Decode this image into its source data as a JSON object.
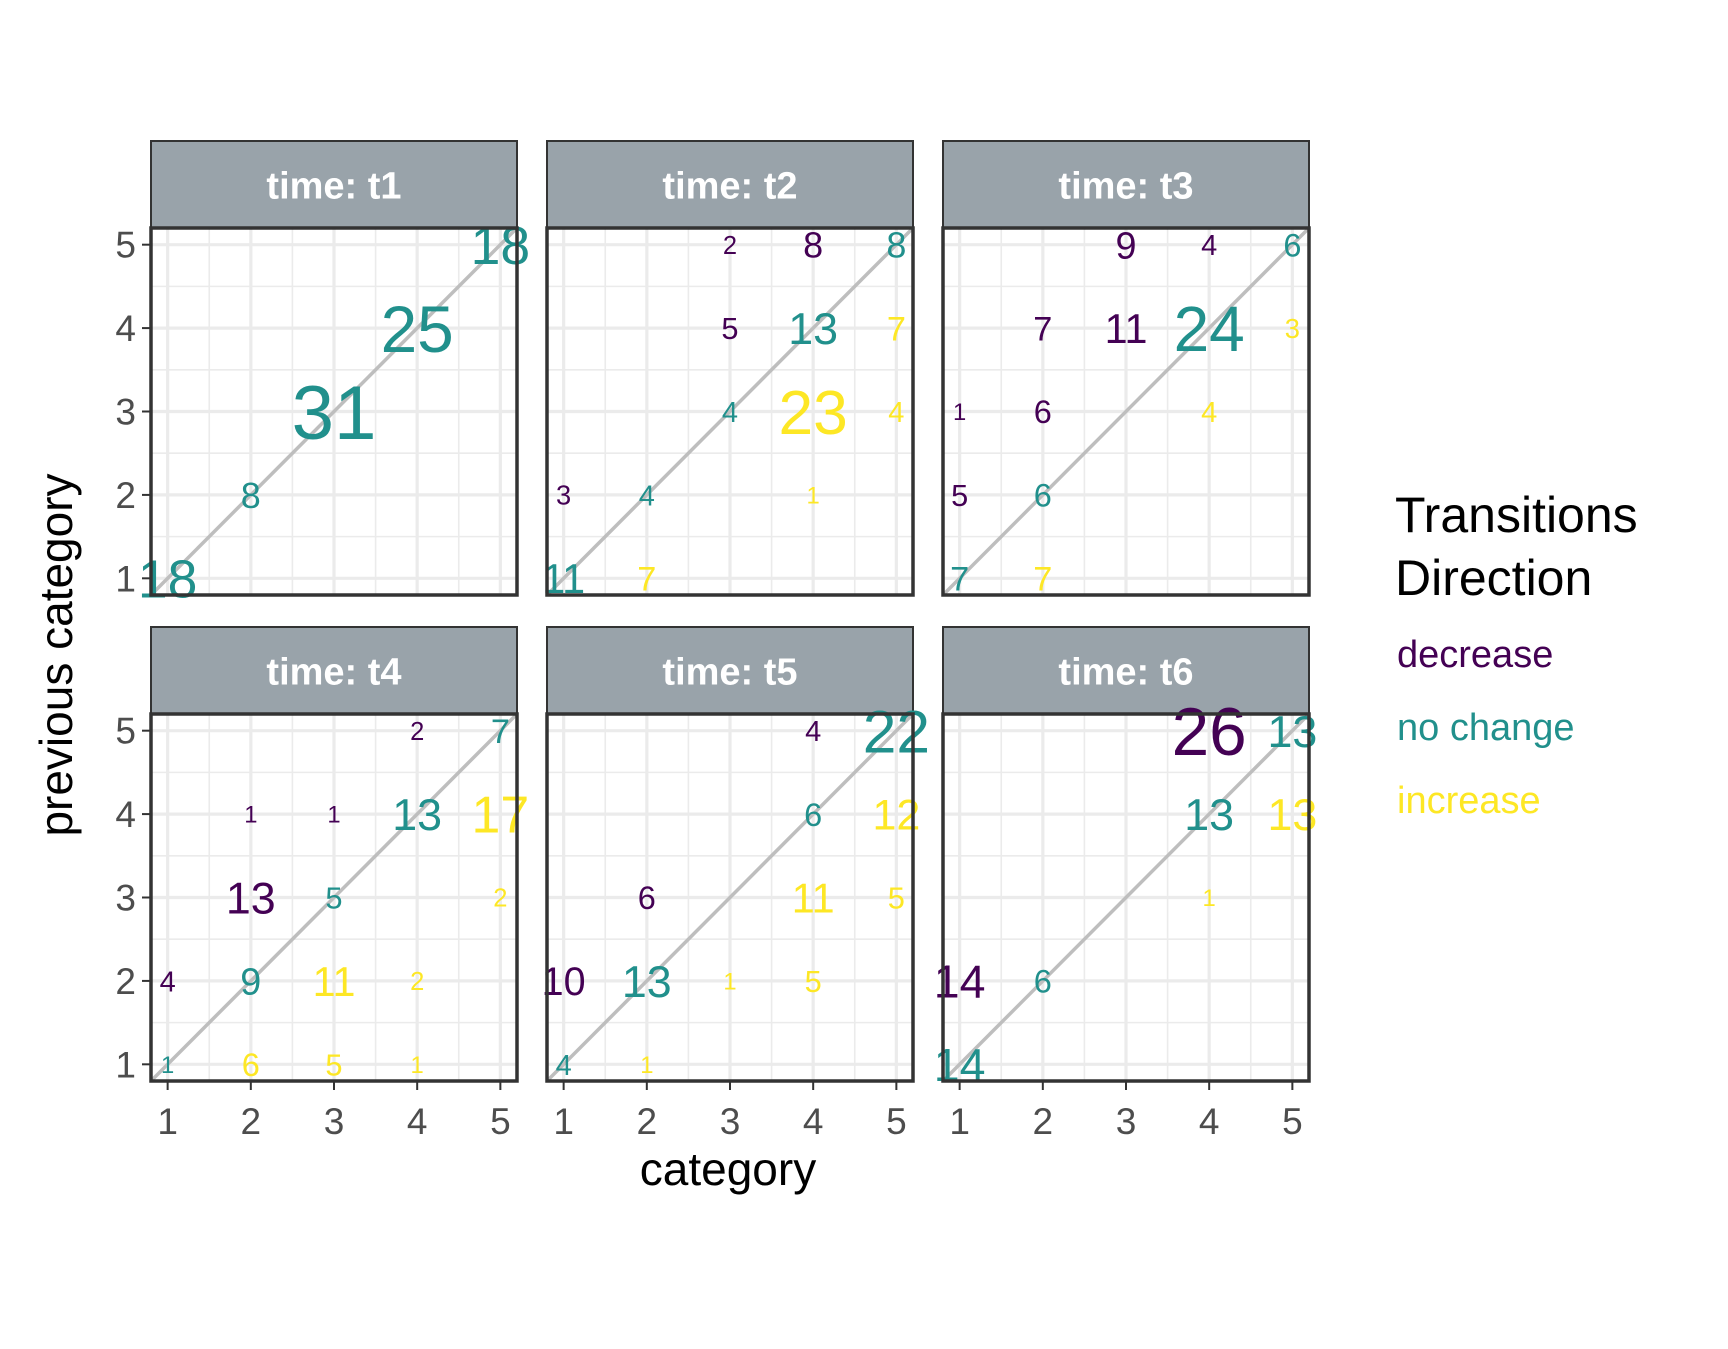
{
  "chart_data": {
    "type": "scatter",
    "title": "",
    "xlabel": "category",
    "ylabel": "previous category",
    "facet_prefix": "time: ",
    "x_ticks": [
      "1",
      "2",
      "3",
      "4",
      "5"
    ],
    "y_ticks": [
      "1",
      "2",
      "3",
      "4",
      "5"
    ],
    "xlim": [
      0.8,
      5.2
    ],
    "ylim": [
      0.8,
      5.2
    ],
    "grid": true,
    "diagonal_reference_line": true,
    "legend": {
      "title_lines": [
        "Transitions",
        "Direction"
      ],
      "position": "right",
      "entries": [
        {
          "key": "decrease",
          "label": "decrease",
          "color": "#440154"
        },
        {
          "key": "no_change",
          "label": "no change",
          "color": "#21908C"
        },
        {
          "key": "increase",
          "label": "increase",
          "color": "#FDE725"
        }
      ]
    },
    "colors": {
      "strip_fill": "#99A3AA",
      "strip_text": "#ffffff",
      "panel_border": "#333333",
      "grid": "#EBEBEB",
      "diagonal": "#BEBEBE",
      "axis_text": "#4D4D4D",
      "axis_title": "#000000"
    },
    "panels": [
      {
        "label": "t1",
        "points": [
          {
            "x": 5,
            "y": 5,
            "n": 18
          },
          {
            "x": 4,
            "y": 4,
            "n": 25
          },
          {
            "x": 3,
            "y": 3,
            "n": 31
          },
          {
            "x": 2,
            "y": 2,
            "n": 8
          },
          {
            "x": 1,
            "y": 1,
            "n": 18
          }
        ]
      },
      {
        "label": "t2",
        "points": [
          {
            "x": 3,
            "y": 5,
            "n": 2
          },
          {
            "x": 4,
            "y": 5,
            "n": 8
          },
          {
            "x": 5,
            "y": 5,
            "n": 8
          },
          {
            "x": 3,
            "y": 4,
            "n": 5
          },
          {
            "x": 4,
            "y": 4,
            "n": 13
          },
          {
            "x": 5,
            "y": 4,
            "n": 7
          },
          {
            "x": 3,
            "y": 3,
            "n": 4
          },
          {
            "x": 4,
            "y": 3,
            "n": 23
          },
          {
            "x": 5,
            "y": 3,
            "n": 4
          },
          {
            "x": 1,
            "y": 2,
            "n": 3
          },
          {
            "x": 2,
            "y": 2,
            "n": 4
          },
          {
            "x": 4,
            "y": 2,
            "n": 1
          },
          {
            "x": 1,
            "y": 1,
            "n": 11
          },
          {
            "x": 2,
            "y": 1,
            "n": 7
          }
        ]
      },
      {
        "label": "t3",
        "points": [
          {
            "x": 3,
            "y": 5,
            "n": 9
          },
          {
            "x": 4,
            "y": 5,
            "n": 4
          },
          {
            "x": 5,
            "y": 5,
            "n": 6
          },
          {
            "x": 2,
            "y": 4,
            "n": 7
          },
          {
            "x": 3,
            "y": 4,
            "n": 11
          },
          {
            "x": 4,
            "y": 4,
            "n": 24
          },
          {
            "x": 5,
            "y": 4,
            "n": 3
          },
          {
            "x": 1,
            "y": 3,
            "n": 1
          },
          {
            "x": 2,
            "y": 3,
            "n": 6
          },
          {
            "x": 4,
            "y": 3,
            "n": 4
          },
          {
            "x": 1,
            "y": 2,
            "n": 5
          },
          {
            "x": 2,
            "y": 2,
            "n": 6
          },
          {
            "x": 1,
            "y": 1,
            "n": 7
          },
          {
            "x": 2,
            "y": 1,
            "n": 7
          }
        ]
      },
      {
        "label": "t4",
        "points": [
          {
            "x": 4,
            "y": 5,
            "n": 2
          },
          {
            "x": 5,
            "y": 5,
            "n": 7
          },
          {
            "x": 2,
            "y": 4,
            "n": 1
          },
          {
            "x": 3,
            "y": 4,
            "n": 1
          },
          {
            "x": 4,
            "y": 4,
            "n": 13
          },
          {
            "x": 5,
            "y": 4,
            "n": 17
          },
          {
            "x": 2,
            "y": 3,
            "n": 13
          },
          {
            "x": 3,
            "y": 3,
            "n": 5
          },
          {
            "x": 5,
            "y": 3,
            "n": 2
          },
          {
            "x": 1,
            "y": 2,
            "n": 4
          },
          {
            "x": 2,
            "y": 2,
            "n": 9
          },
          {
            "x": 3,
            "y": 2,
            "n": 11
          },
          {
            "x": 4,
            "y": 2,
            "n": 2
          },
          {
            "x": 1,
            "y": 1,
            "n": 1
          },
          {
            "x": 2,
            "y": 1,
            "n": 6
          },
          {
            "x": 3,
            "y": 1,
            "n": 5
          },
          {
            "x": 4,
            "y": 1,
            "n": 1
          }
        ]
      },
      {
        "label": "t5",
        "points": [
          {
            "x": 4,
            "y": 5,
            "n": 4
          },
          {
            "x": 5,
            "y": 5,
            "n": 22
          },
          {
            "x": 4,
            "y": 4,
            "n": 6
          },
          {
            "x": 5,
            "y": 4,
            "n": 12
          },
          {
            "x": 2,
            "y": 3,
            "n": 6
          },
          {
            "x": 4,
            "y": 3,
            "n": 11
          },
          {
            "x": 5,
            "y": 3,
            "n": 5
          },
          {
            "x": 1,
            "y": 2,
            "n": 10
          },
          {
            "x": 2,
            "y": 2,
            "n": 13
          },
          {
            "x": 3,
            "y": 2,
            "n": 1
          },
          {
            "x": 4,
            "y": 2,
            "n": 5
          },
          {
            "x": 1,
            "y": 1,
            "n": 4
          },
          {
            "x": 2,
            "y": 1,
            "n": 1
          }
        ]
      },
      {
        "label": "t6",
        "points": [
          {
            "x": 4,
            "y": 5,
            "n": 26
          },
          {
            "x": 5,
            "y": 5,
            "n": 13
          },
          {
            "x": 4,
            "y": 4,
            "n": 13
          },
          {
            "x": 5,
            "y": 4,
            "n": 13
          },
          {
            "x": 4,
            "y": 3,
            "n": 1
          },
          {
            "x": 1,
            "y": 2,
            "n": 14
          },
          {
            "x": 2,
            "y": 2,
            "n": 6
          },
          {
            "x": 1,
            "y": 1,
            "n": 14
          }
        ]
      }
    ]
  }
}
